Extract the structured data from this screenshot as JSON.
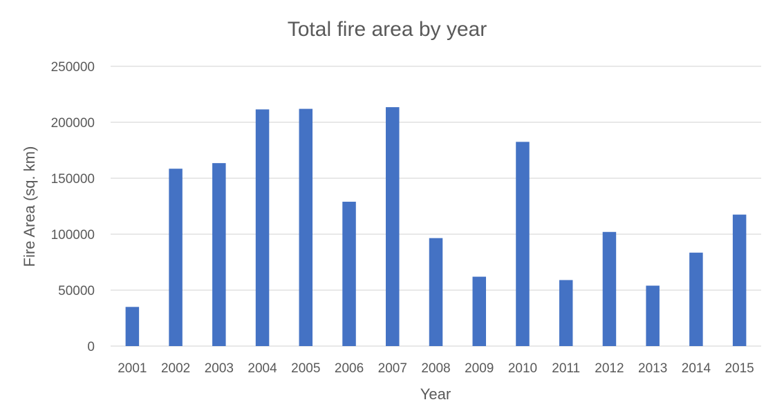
{
  "chart_data": {
    "type": "bar",
    "title": "Total fire area by year",
    "xlabel": "Year",
    "ylabel": "Fire Area (sq. km)",
    "categories": [
      "2001",
      "2002",
      "2003",
      "2004",
      "2005",
      "2006",
      "2007",
      "2008",
      "2009",
      "2010",
      "2011",
      "2012",
      "2013",
      "2014",
      "2015"
    ],
    "values": [
      35000,
      158500,
      163500,
      211500,
      212000,
      129000,
      213500,
      96500,
      62000,
      182500,
      59000,
      102000,
      54000,
      83500,
      117500
    ],
    "ylim": [
      0,
      250000
    ],
    "yticks": [
      "0",
      "50000",
      "100000",
      "150000",
      "200000",
      "250000"
    ],
    "grid": true,
    "legend": "none",
    "bar_color": "#4472c4"
  }
}
